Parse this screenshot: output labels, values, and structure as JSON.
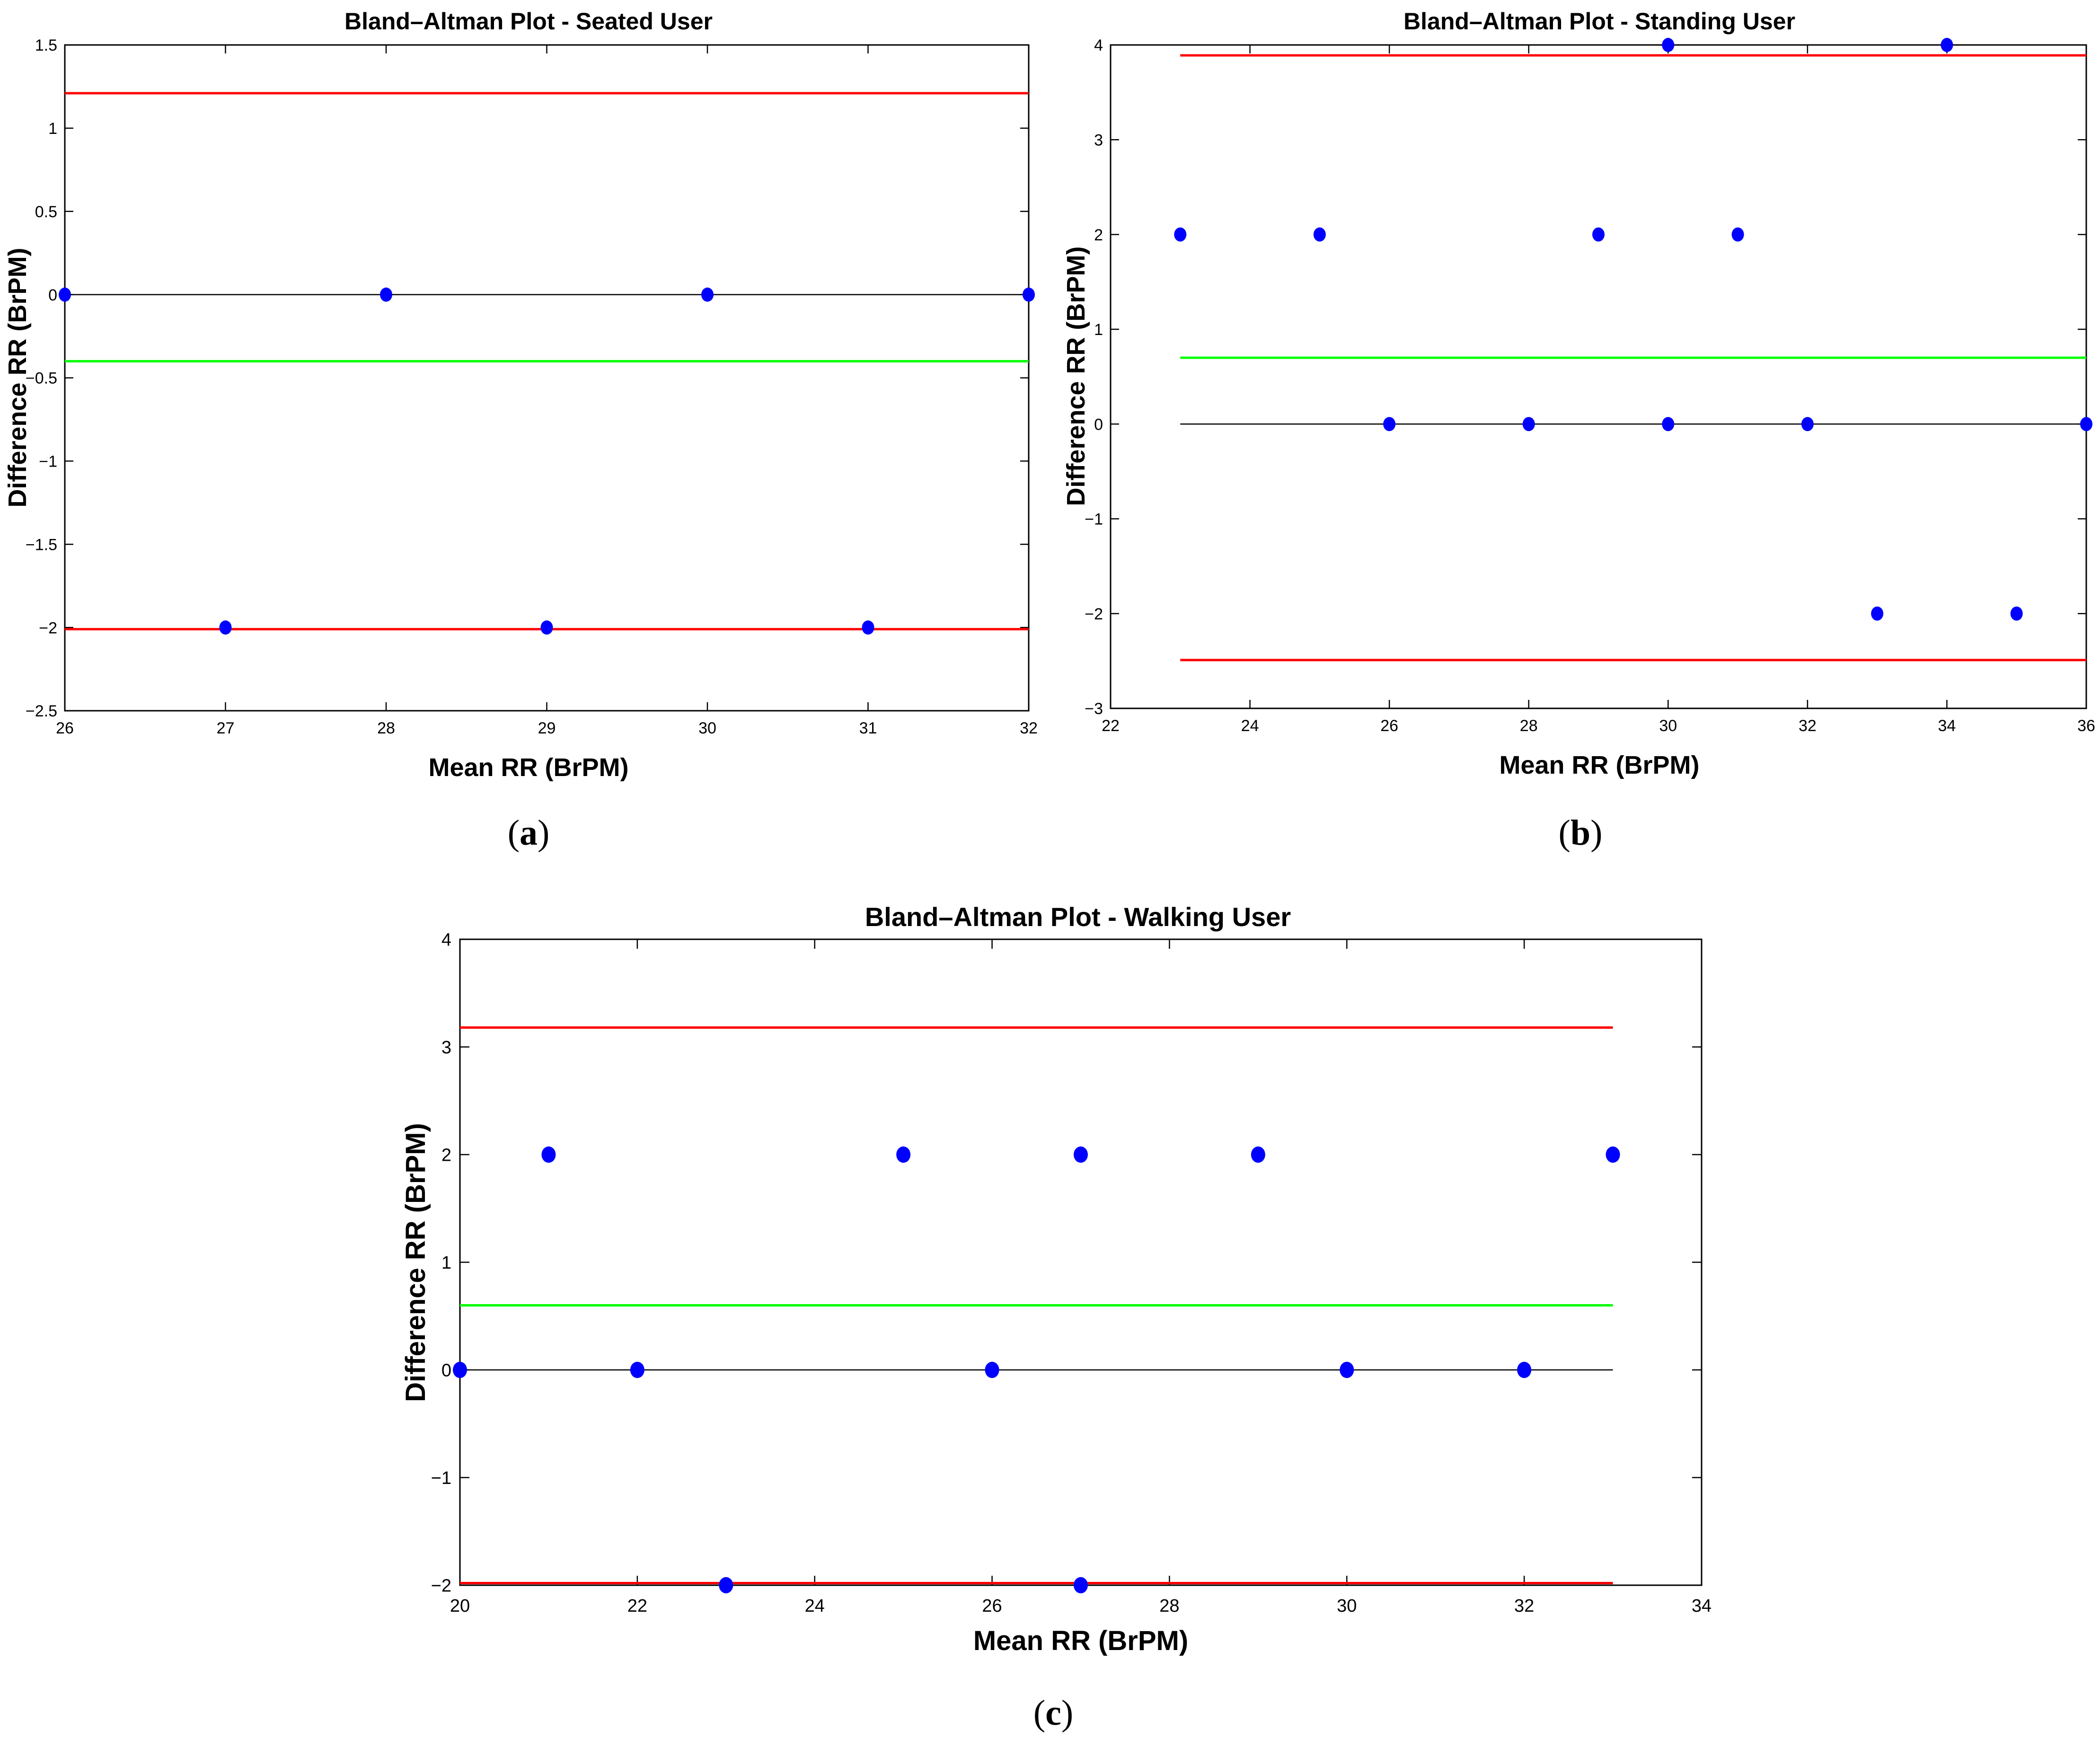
{
  "colors": {
    "points": "#0000ff",
    "limits": "#ff0000",
    "mean": "#00ff00",
    "zero_line": "#000000",
    "axes": "#000000"
  },
  "chart_data": [
    {
      "id": "a",
      "type": "scatter",
      "title": "Bland–Altman Plot - Seated User",
      "xlabel": "Mean RR (BrPM)",
      "ylabel": "Difference RR (BrPM)",
      "caption_letter": "a",
      "xlim": [
        26,
        32
      ],
      "ylim": [
        -2.5,
        1.5
      ],
      "xticks": [
        26,
        27,
        28,
        29,
        30,
        31,
        32
      ],
      "xtick_labels": [
        "26",
        "27",
        "28",
        "29",
        "30",
        "31",
        "32"
      ],
      "yticks": [
        1.5,
        1,
        0.5,
        0,
        -0.5,
        -1,
        -1.5,
        -2,
        -2.5
      ],
      "ytick_labels": [
        "1.5",
        "1",
        "0.5",
        "0",
        "−0.5",
        "−1",
        "−1.5",
        "−2",
        "−2.5"
      ],
      "points": [
        {
          "x": 26,
          "y": 0
        },
        {
          "x": 27,
          "y": -2
        },
        {
          "x": 28,
          "y": 0
        },
        {
          "x": 29,
          "y": -2
        },
        {
          "x": 30,
          "y": 0
        },
        {
          "x": 31,
          "y": -2
        },
        {
          "x": 32,
          "y": 0
        }
      ],
      "mean_diff": -0.4,
      "upper_loa": 1.21,
      "lower_loa": -2.01,
      "line_x_range": [
        26,
        32
      ]
    },
    {
      "id": "b",
      "type": "scatter",
      "title": "Bland–Altman Plot - Standing User",
      "xlabel": "Mean RR (BrPM)",
      "ylabel": "Difference RR (BrPM)",
      "caption_letter": "b",
      "xlim": [
        22,
        36
      ],
      "ylim": [
        -3,
        4
      ],
      "xticks": [
        22,
        24,
        26,
        28,
        30,
        32,
        34,
        36
      ],
      "xtick_labels": [
        "22",
        "24",
        "26",
        "28",
        "30",
        "32",
        "34",
        "36"
      ],
      "yticks": [
        4,
        3,
        2,
        1,
        0,
        -1,
        -2,
        -3
      ],
      "ytick_labels": [
        "4",
        "3",
        "2",
        "1",
        "0",
        "−1",
        "−2",
        "−3"
      ],
      "points": [
        {
          "x": 23,
          "y": 2
        },
        {
          "x": 25,
          "y": 2
        },
        {
          "x": 26,
          "y": 0
        },
        {
          "x": 28,
          "y": 0
        },
        {
          "x": 29,
          "y": 2
        },
        {
          "x": 30,
          "y": 4
        },
        {
          "x": 30,
          "y": 0
        },
        {
          "x": 31,
          "y": 2
        },
        {
          "x": 32,
          "y": 0
        },
        {
          "x": 33,
          "y": -2
        },
        {
          "x": 34,
          "y": 4
        },
        {
          "x": 35,
          "y": -2
        },
        {
          "x": 36,
          "y": 0
        }
      ],
      "mean_diff": 0.7,
      "upper_loa": 3.89,
      "lower_loa": -2.49,
      "line_x_range": [
        23,
        36
      ]
    },
    {
      "id": "c",
      "type": "scatter",
      "title": "Bland–Altman Plot - Walking User",
      "xlabel": "Mean RR (BrPM)",
      "ylabel": "Difference RR (BrPM)",
      "caption_letter": "c",
      "xlim": [
        20,
        34
      ],
      "ylim": [
        -2,
        4
      ],
      "xticks": [
        20,
        22,
        24,
        26,
        28,
        30,
        32,
        34
      ],
      "xtick_labels": [
        "20",
        "22",
        "24",
        "26",
        "28",
        "30",
        "32",
        "34"
      ],
      "yticks": [
        4,
        3,
        2,
        1,
        0,
        -1,
        -2
      ],
      "ytick_labels": [
        "4",
        "3",
        "2",
        "1",
        "0",
        "−1",
        "−2"
      ],
      "points": [
        {
          "x": 20,
          "y": 0
        },
        {
          "x": 21,
          "y": 2
        },
        {
          "x": 22,
          "y": 0
        },
        {
          "x": 23,
          "y": -2
        },
        {
          "x": 25,
          "y": 2
        },
        {
          "x": 26,
          "y": 0
        },
        {
          "x": 27,
          "y": 2
        },
        {
          "x": 27,
          "y": -2
        },
        {
          "x": 29,
          "y": 2
        },
        {
          "x": 30,
          "y": 0
        },
        {
          "x": 32,
          "y": 0
        },
        {
          "x": 33,
          "y": 2
        }
      ],
      "mean_diff": 0.6,
      "upper_loa": 3.18,
      "lower_loa": -1.98,
      "line_x_range": [
        20,
        33
      ]
    }
  ]
}
